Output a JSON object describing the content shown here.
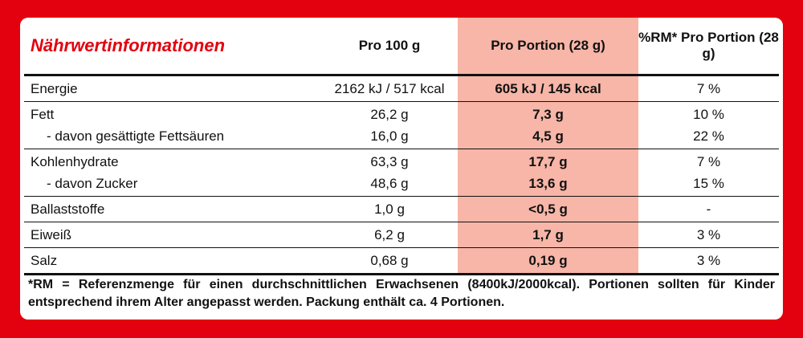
{
  "header": {
    "title": "Nährwertinformationen",
    "columns": [
      "Pro 100 g",
      "Pro Portion (28 g)",
      "%RM* Pro Portion (28 g)"
    ]
  },
  "rows": [
    {
      "lines": [
        {
          "label": "Energie",
          "per100": "2162 kJ / 517 kcal",
          "portion": "605 kJ / 145 kcal",
          "rm": "7 %"
        }
      ]
    },
    {
      "lines": [
        {
          "label": "Fett",
          "per100": "26,2 g",
          "portion": "7,3 g",
          "rm": "10 %"
        },
        {
          "label": "- davon gesättigte Fettsäuren",
          "per100": "16,0 g",
          "portion": "4,5 g",
          "rm": "22 %"
        }
      ]
    },
    {
      "lines": [
        {
          "label": "Kohlenhydrate",
          "per100": "63,3 g",
          "portion": "17,7 g",
          "rm": "7 %"
        },
        {
          "label": "- davon Zucker",
          "per100": "48,6 g",
          "portion": "13,6 g",
          "rm": "15 %"
        }
      ]
    },
    {
      "lines": [
        {
          "label": "Ballaststoffe",
          "per100": "1,0 g",
          "portion": "<0,5 g",
          "rm": "-"
        }
      ]
    },
    {
      "lines": [
        {
          "label": "Eiweiß",
          "per100": "6,2 g",
          "portion": "1,7 g",
          "rm": "3 %"
        }
      ]
    },
    {
      "lines": [
        {
          "label": "Salz",
          "per100": "0,68 g",
          "portion": "0,19 g",
          "rm": "3 %"
        }
      ]
    }
  ],
  "footnote": "*RM = Referenzmenge für einen durchschnittlichen Erwachsenen (8400kJ/2000kcal). Portionen sollten für Kinder entsprechend ihrem Alter angepasst werden. Packung enthält ca. 4 Portionen."
}
